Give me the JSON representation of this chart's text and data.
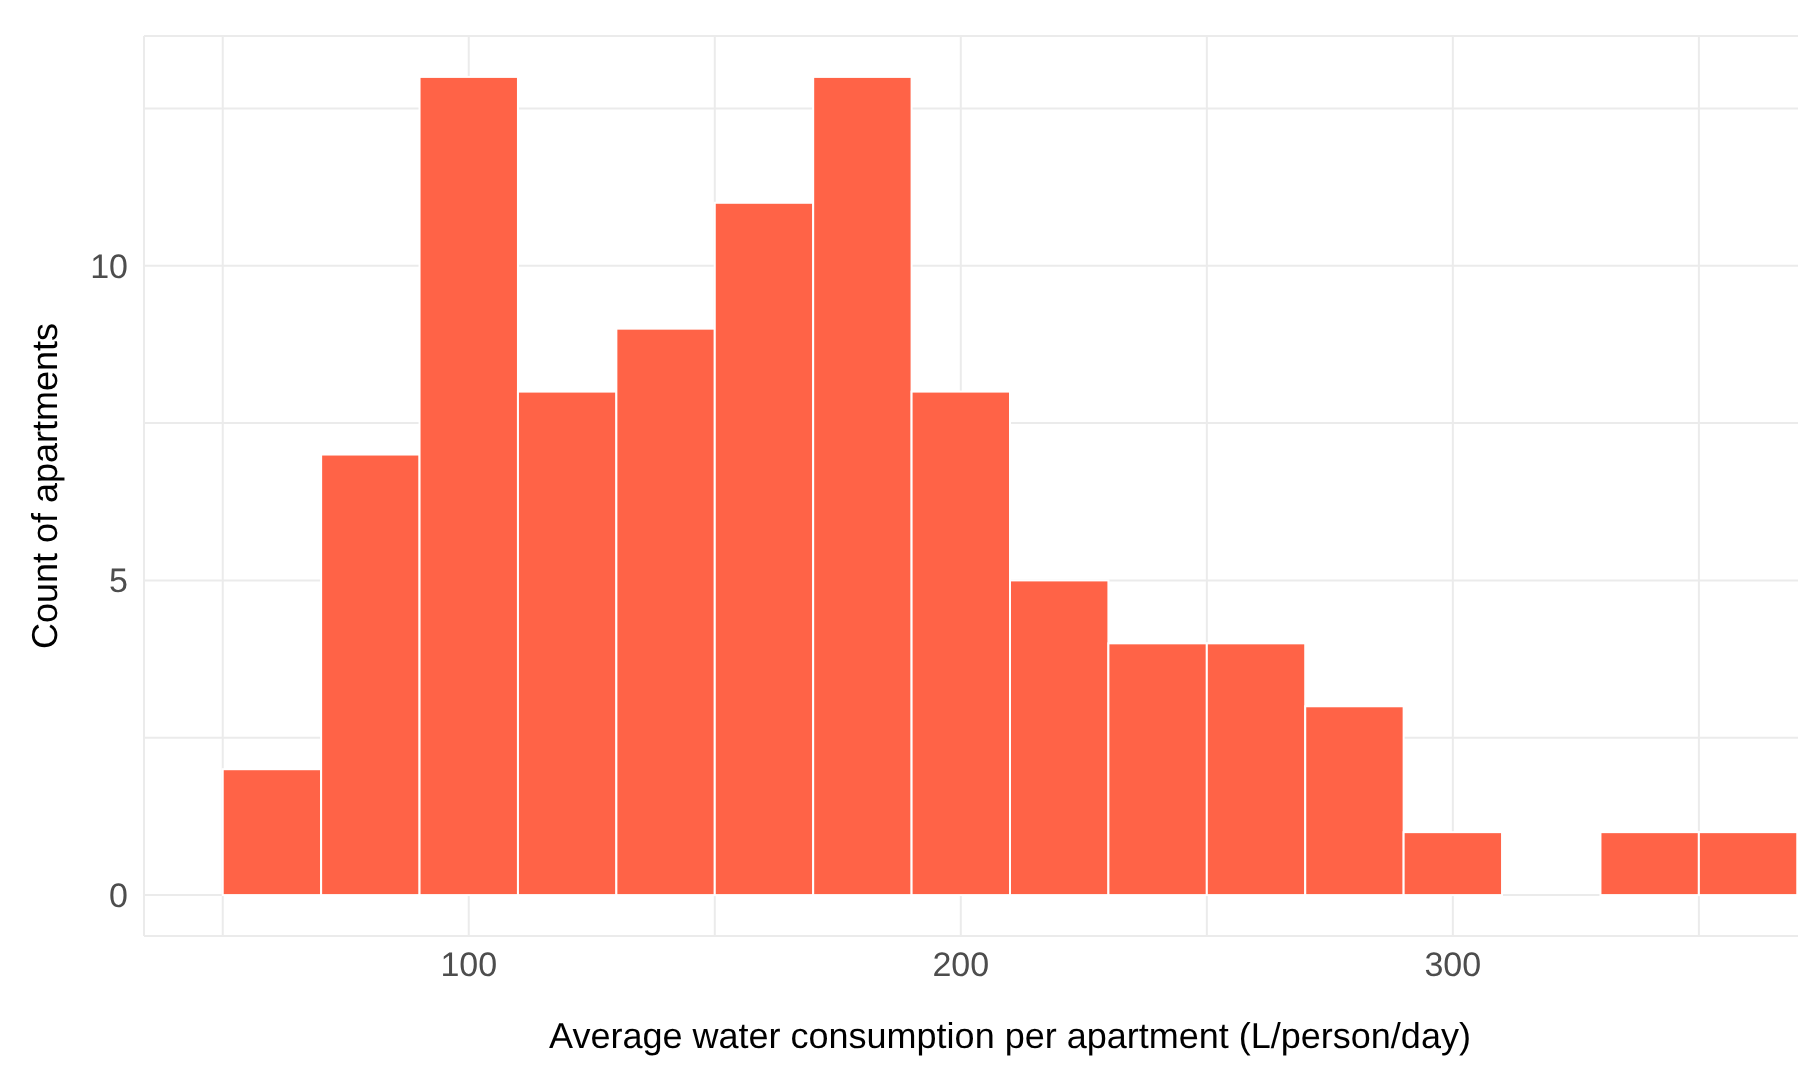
{
  "chart_data": {
    "type": "histogram",
    "xlabel": "Average water consumption per apartment (L/person/day)",
    "ylabel": "Count of apartments",
    "bins": [
      50,
      70,
      90,
      110,
      130,
      150,
      170,
      190,
      210,
      230,
      250,
      270,
      290,
      310,
      330,
      350,
      370
    ],
    "values": [
      2,
      7,
      13,
      8,
      9,
      11,
      13,
      8,
      5,
      4,
      4,
      3,
      1,
      0,
      1,
      1
    ],
    "color": "#ff6347",
    "xlim": [
      34,
      386
    ],
    "xticks": [
      {
        "value": 50,
        "label": null
      },
      100,
      {
        "value": 150,
        "label": null
      },
      200,
      {
        "value": 250,
        "label": null
      },
      300,
      {
        "value": 350,
        "label": null
      }
    ],
    "ylim": [
      -0.65,
      13.65
    ],
    "yticks": [
      0,
      {
        "value": 2.5,
        "label": null
      },
      5,
      {
        "value": 7.5,
        "label": null
      },
      10,
      {
        "value": 12.5,
        "label": null
      }
    ],
    "grid": true
  }
}
